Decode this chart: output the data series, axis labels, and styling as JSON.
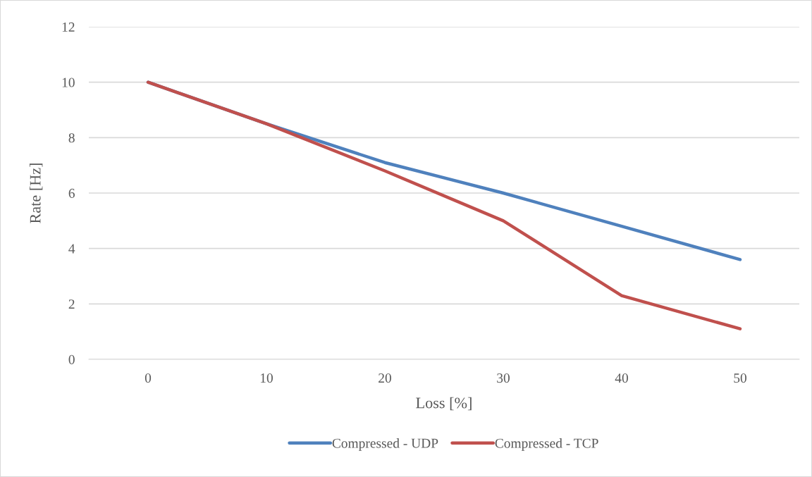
{
  "chart_data": {
    "type": "line",
    "xlabel": "Loss [%]",
    "ylabel": "Rate [Hz]",
    "categories": [
      "0",
      "10",
      "20",
      "30",
      "40",
      "50"
    ],
    "series": [
      {
        "name": "Compressed - UDP",
        "color": "#4f81bd",
        "values": [
          10,
          8.5,
          7.1,
          6.0,
          4.8,
          3.6
        ]
      },
      {
        "name": "Compressed - TCP",
        "color": "#c0504d",
        "values": [
          10,
          8.5,
          6.8,
          5.0,
          2.3,
          1.1
        ]
      }
    ],
    "ylim": [
      0,
      12
    ],
    "yticks": [
      0,
      2,
      4,
      6,
      8,
      10,
      12
    ],
    "grid": "y",
    "legend": "bottom",
    "marker": "none",
    "line_style": "solid"
  }
}
